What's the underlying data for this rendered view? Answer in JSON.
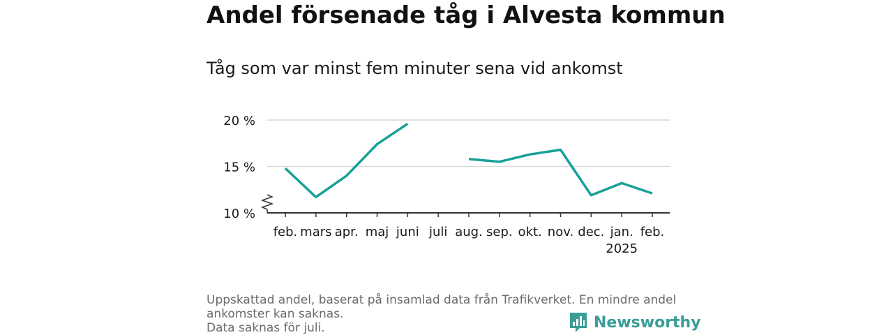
{
  "header": {
    "title": "Andel försenade tåg i Alvesta kommun",
    "subtitle": "Tåg som var minst fem minuter sena vid ankomst"
  },
  "chart_data": {
    "type": "line",
    "title": "Andel försenade tåg i Alvesta kommun",
    "subtitle": "Tåg som var minst fem minuter sena vid ankomst",
    "xlabel": "",
    "ylabel": "",
    "categories": [
      "feb.",
      "mars",
      "apr.",
      "maj",
      "juni",
      "juli",
      "aug.",
      "sep.",
      "okt.",
      "nov.",
      "dec.",
      "jan.",
      "feb."
    ],
    "category_sublabels": [
      "",
      "",
      "",
      "",
      "",
      "",
      "",
      "",
      "",
      "",
      "",
      "2025",
      ""
    ],
    "series": [
      {
        "values": [
          14.8,
          11.7,
          14.0,
          17.4,
          19.6,
          null,
          15.8,
          15.5,
          16.3,
          16.8,
          11.9,
          13.2,
          12.1
        ]
      }
    ],
    "y_ticks": [
      10,
      15,
      20
    ],
    "y_tick_labels": [
      "10 %",
      "15 %",
      "20 %"
    ],
    "ylim": [
      10,
      20
    ],
    "y_axis_broken": true,
    "grid": true,
    "line_color": "#17a098",
    "grid_color": "#d9d9d9",
    "axis_color": "#333333"
  },
  "footnote": {
    "line1": "Uppskattad andel, baserat på insamlad data från Trafikverket. En mindre andel",
    "line2": "ankomster kan saknas.",
    "line3": "Data saknas för juli."
  },
  "brand": {
    "name": "Newsworthy",
    "icon": "newsworthy-logo-icon",
    "color": "#3a9e97"
  }
}
